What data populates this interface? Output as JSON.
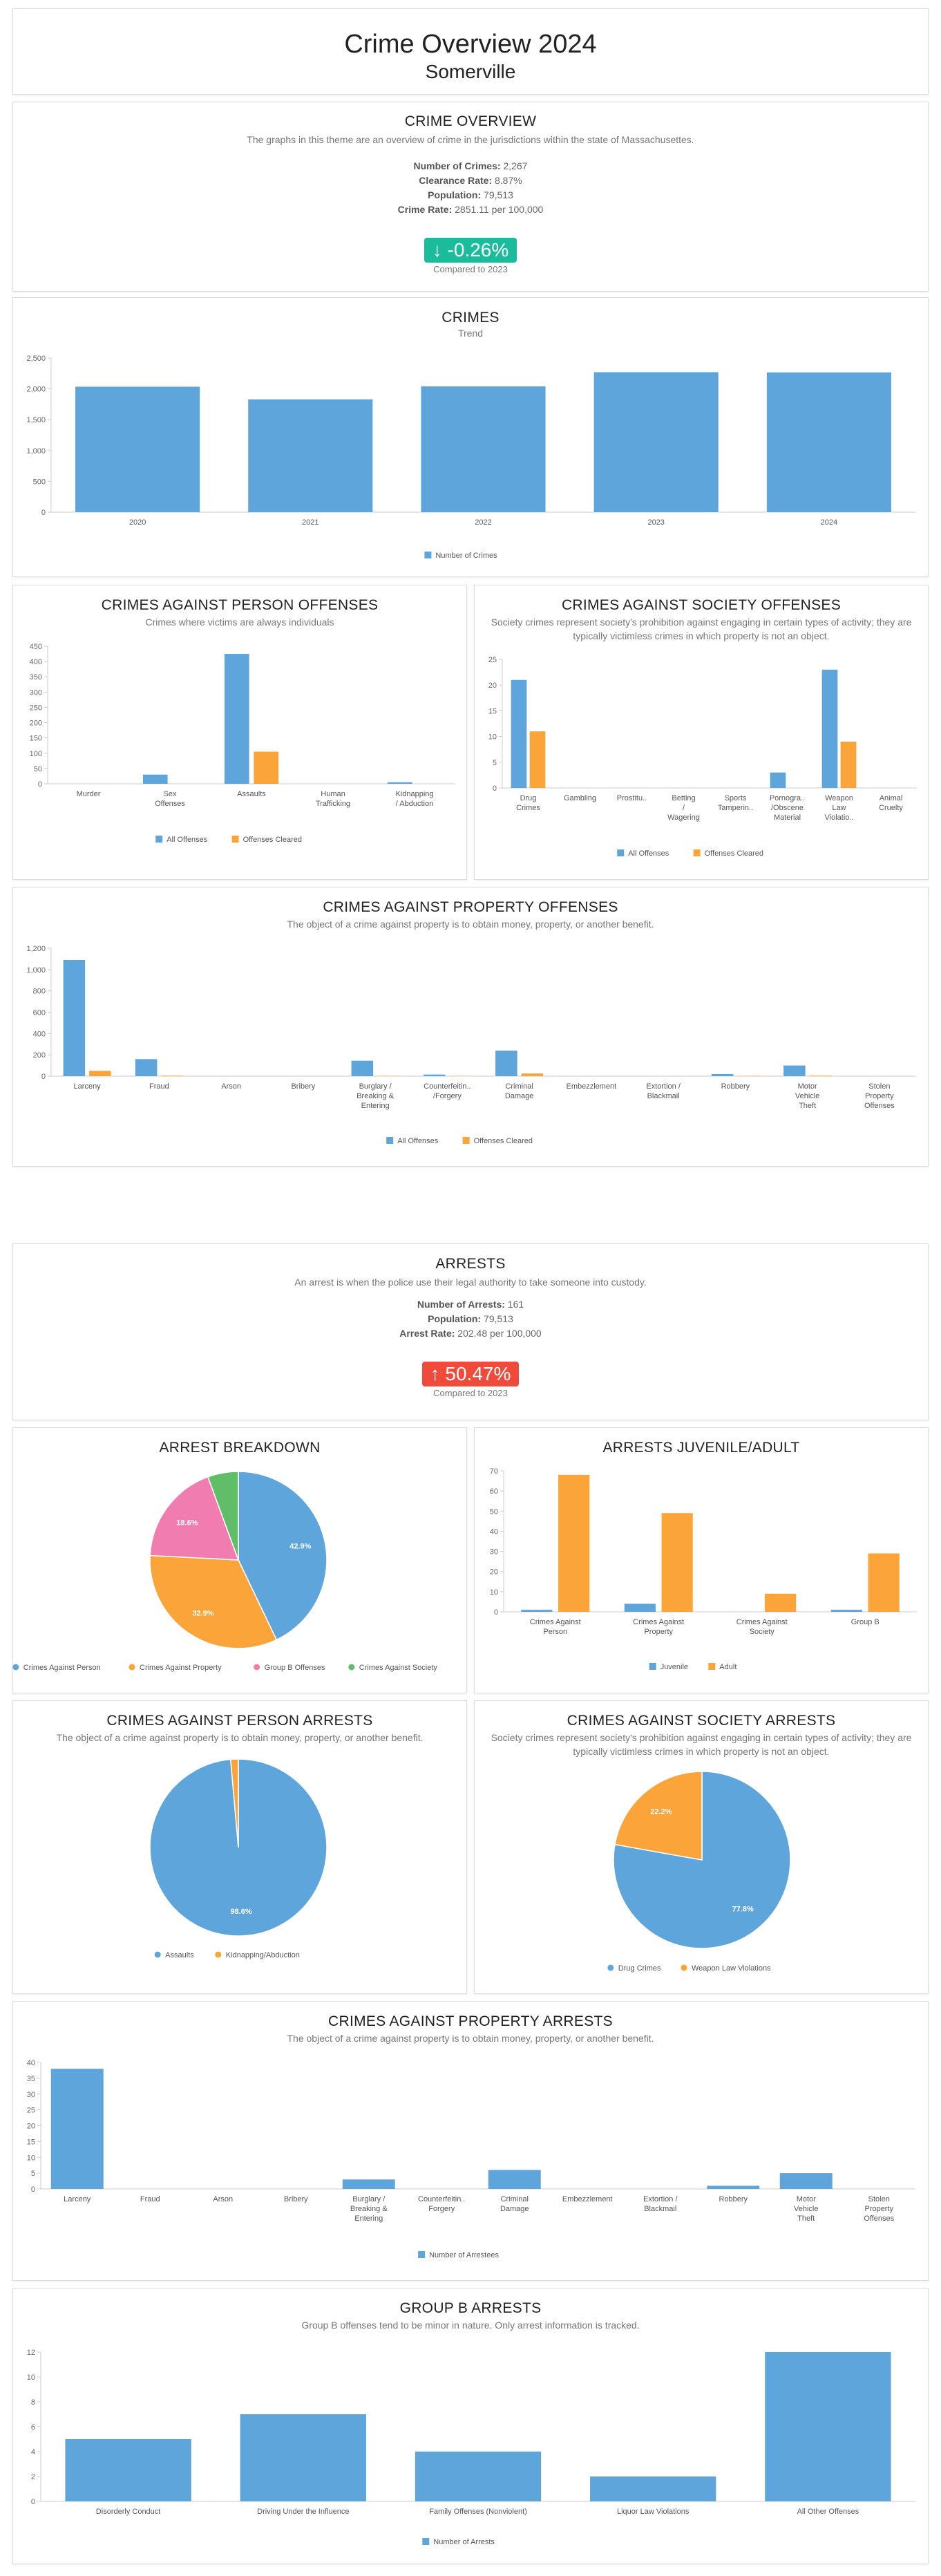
{
  "header": {
    "title": "Crime Overview 2024",
    "subtitle": "Somerville"
  },
  "colors": {
    "blue": "#5da5da",
    "orange": "#faa43a",
    "pink": "#f17cb0",
    "green": "#60bd68",
    "badge_green": "#1abc9c",
    "badge_red": "#f04b3a"
  },
  "crime_overview": {
    "title": "CRIME OVERVIEW",
    "description": "The graphs in this theme are an overview of crime in the jurisdictions within the state of Massachusettes.",
    "stats": [
      {
        "label": "Number of Crimes:",
        "value": "2,267"
      },
      {
        "label": "Clearance Rate:",
        "value": "8.87%"
      },
      {
        "label": "Population:",
        "value": "79,513"
      },
      {
        "label": "Crime Rate:",
        "value": "2851.11 per 100,000"
      }
    ],
    "change": "-0.26%",
    "change_icon": "arrow-down-icon",
    "compared": "Compared to 2023"
  },
  "arrests": {
    "title": "ARRESTS",
    "description": "An arrest is when the police use their legal authority to take someone into custody.",
    "stats": [
      {
        "label": "Number of Arrests:",
        "value": "161"
      },
      {
        "label": "Population:",
        "value": "79,513"
      },
      {
        "label": "Arrest Rate:",
        "value": "202.48 per 100,000"
      }
    ],
    "change": "50.47%",
    "change_icon": "arrow-up-icon",
    "compared": "Compared to 2023"
  },
  "chart_data": [
    {
      "id": "crimes",
      "type": "bar",
      "title": "CRIMES",
      "subtitle": "Trend",
      "categories": [
        "2020",
        "2021",
        "2022",
        "2023",
        "2024"
      ],
      "series": [
        {
          "name": "Number of Crimes",
          "color": "#5da5da",
          "values": [
            2035,
            1830,
            2040,
            2270,
            2267
          ]
        }
      ],
      "ylim": [
        0,
        2500
      ],
      "yticks": [
        "0",
        "500",
        "1,000",
        "1,500",
        "2,000",
        "2,500"
      ],
      "ytick_values": [
        0,
        500,
        1000,
        1500,
        2000,
        2500
      ]
    },
    {
      "id": "person_offenses",
      "type": "bar",
      "title": "CRIMES AGAINST PERSON OFFENSES",
      "subtitle": "Crimes where victims are always individuals",
      "categories": [
        "Murder",
        "Sex Offenses",
        "Assaults",
        "Human Trafficking",
        "Kidnapping / Abduction"
      ],
      "series": [
        {
          "name": "All Offenses",
          "color": "#5da5da",
          "values": [
            0,
            30,
            425,
            0,
            5
          ]
        },
        {
          "name": "Offenses Cleared",
          "color": "#faa43a",
          "values": [
            0,
            0,
            105,
            0,
            0
          ]
        }
      ],
      "ylim": [
        0,
        450
      ],
      "yticks": [
        "0",
        "50",
        "100",
        "150",
        "200",
        "250",
        "300",
        "350",
        "400",
        "450"
      ],
      "ytick_values": [
        0,
        50,
        100,
        150,
        200,
        250,
        300,
        350,
        400,
        450
      ]
    },
    {
      "id": "society_offenses",
      "type": "bar",
      "title": "CRIMES AGAINST SOCIETY OFFENSES",
      "subtitle": "Society crimes represent society's prohibition against engaging in certain types of activity; they are typically victimless crimes in which property is not an object.",
      "categories": [
        "Drug Crimes",
        "Gambling",
        "Prostitu..",
        "Betting / Wagering",
        "Sports Tamperin..",
        "Pornogra.. /Obscene Material",
        "Weapon Law Violatio..",
        "Animal Cruelty"
      ],
      "series": [
        {
          "name": "All Offenses",
          "color": "#5da5da",
          "values": [
            21,
            0,
            0,
            0,
            0,
            3,
            23,
            0
          ]
        },
        {
          "name": "Offenses Cleared",
          "color": "#faa43a",
          "values": [
            11,
            0,
            0,
            0,
            0,
            0,
            9,
            0
          ]
        }
      ],
      "ylim": [
        0,
        25
      ],
      "yticks": [
        "0",
        "5",
        "10",
        "15",
        "20",
        "25"
      ],
      "ytick_values": [
        0,
        5,
        10,
        15,
        20,
        25
      ]
    },
    {
      "id": "property_offenses",
      "type": "bar",
      "title": "CRIMES AGAINST PROPERTY OFFENSES",
      "subtitle": "The object of a crime against property is to obtain money, property, or another benefit.",
      "categories": [
        "Larceny",
        "Fraud",
        "Arson",
        "Bribery",
        "Burglary / Breaking & Entering",
        "Counterfeitin.. /Forgery",
        "Criminal Damage",
        "Embezzlement",
        "Extortion / Blackmail",
        "Robbery",
        "Motor Vehicle Theft",
        "Stolen Property Offenses"
      ],
      "series": [
        {
          "name": "All Offenses",
          "color": "#5da5da",
          "values": [
            1090,
            160,
            0,
            0,
            145,
            15,
            240,
            0,
            0,
            20,
            100,
            0
          ]
        },
        {
          "name": "Offenses Cleared",
          "color": "#faa43a",
          "values": [
            50,
            5,
            0,
            0,
            3,
            2,
            25,
            0,
            0,
            3,
            5,
            0
          ]
        }
      ],
      "ylim": [
        0,
        1200
      ],
      "yticks": [
        "0",
        "200",
        "400",
        "600",
        "800",
        "1,000",
        "1,200"
      ],
      "ytick_values": [
        0,
        200,
        400,
        600,
        800,
        1000,
        1200
      ]
    },
    {
      "id": "arrest_breakdown",
      "type": "pie",
      "title": "ARREST BREAKDOWN",
      "labels": [
        "Crimes Against Person",
        "Crimes Against Property",
        "Group B Offenses",
        "Crimes Against Society"
      ],
      "values": [
        42.9,
        32.9,
        18.6,
        5.6
      ],
      "value_labels": [
        "42.9%",
        "32.9%",
        "18.6%",
        ""
      ],
      "colors": [
        "#5da5da",
        "#faa43a",
        "#f17cb0",
        "#60bd68"
      ]
    },
    {
      "id": "juvenile_adult",
      "type": "bar",
      "title": "ARRESTS JUVENILE/ADULT",
      "categories": [
        "Crimes Against Person",
        "Crimes Against Property",
        "Crimes Against Society",
        "Group B"
      ],
      "series": [
        {
          "name": "Juvenile",
          "color": "#5da5da",
          "values": [
            1,
            4,
            0,
            1
          ]
        },
        {
          "name": "Adult",
          "color": "#faa43a",
          "values": [
            68,
            49,
            9,
            29
          ]
        }
      ],
      "ylim": [
        0,
        70
      ],
      "yticks": [
        "0",
        "10",
        "20",
        "30",
        "40",
        "50",
        "60",
        "70"
      ],
      "ytick_values": [
        0,
        10,
        20,
        30,
        40,
        50,
        60,
        70
      ]
    },
    {
      "id": "person_arrests",
      "type": "pie",
      "title": "CRIMES AGAINST PERSON ARRESTS",
      "subtitle": "The object of a crime against property is to obtain money, property, or another benefit.",
      "labels": [
        "Assaults",
        "Kidnapping/Abduction"
      ],
      "values": [
        98.6,
        1.4
      ],
      "value_labels": [
        "98.6%",
        ""
      ],
      "colors": [
        "#5da5da",
        "#faa43a"
      ]
    },
    {
      "id": "society_arrests",
      "type": "pie",
      "title": "CRIMES AGAINST SOCIETY ARRESTS",
      "subtitle": "Society crimes represent society's prohibition against engaging in certain types of activity; they are typically victimless crimes in which property is not an object.",
      "labels": [
        "Drug Crimes",
        "Weapon Law Violations"
      ],
      "values": [
        77.8,
        22.2
      ],
      "value_labels": [
        "77.8%",
        "22.2%"
      ],
      "colors": [
        "#5da5da",
        "#faa43a"
      ]
    },
    {
      "id": "property_arrests",
      "type": "bar",
      "title": "CRIMES AGAINST PROPERTY ARRESTS",
      "subtitle": "The object of a crime against property is to obtain money, property, or another benefit.",
      "categories": [
        "Larceny",
        "Fraud",
        "Arson",
        "Bribery",
        "Burglary / Breaking & Entering",
        "Counterfeitin.. Forgery",
        "Criminal Damage",
        "Embezzlement",
        "Extortion / Blackmail",
        "Robbery",
        "Motor Vehicle Theft",
        "Stolen Property Offenses"
      ],
      "series": [
        {
          "name": "Number of Arrestees",
          "color": "#5da5da",
          "values": [
            38,
            0,
            0,
            0,
            3,
            0,
            6,
            0,
            0,
            1,
            5,
            0
          ]
        }
      ],
      "ylim": [
        0,
        40
      ],
      "yticks": [
        "0",
        "5",
        "10",
        "15",
        "20",
        "25",
        "30",
        "35",
        "40"
      ],
      "ytick_values": [
        0,
        5,
        10,
        15,
        20,
        25,
        30,
        35,
        40
      ]
    },
    {
      "id": "group_b",
      "type": "bar",
      "title": "GROUP B ARRESTS",
      "subtitle": "Group B offenses tend to be minor in nature. Only arrest information is tracked.",
      "categories": [
        "Disorderly Conduct",
        "Driving Under the Influence",
        "Family Offenses (Nonviolent)",
        "Liquor Law Violations",
        "All Other Offenses"
      ],
      "series": [
        {
          "name": "Number of Arrests",
          "color": "#5da5da",
          "values": [
            5,
            7,
            4,
            2,
            12
          ]
        }
      ],
      "ylim": [
        0,
        12
      ],
      "yticks": [
        "0",
        "2",
        "4",
        "6",
        "8",
        "10",
        "12"
      ],
      "ytick_values": [
        0,
        2,
        4,
        6,
        8,
        10,
        12
      ]
    }
  ]
}
